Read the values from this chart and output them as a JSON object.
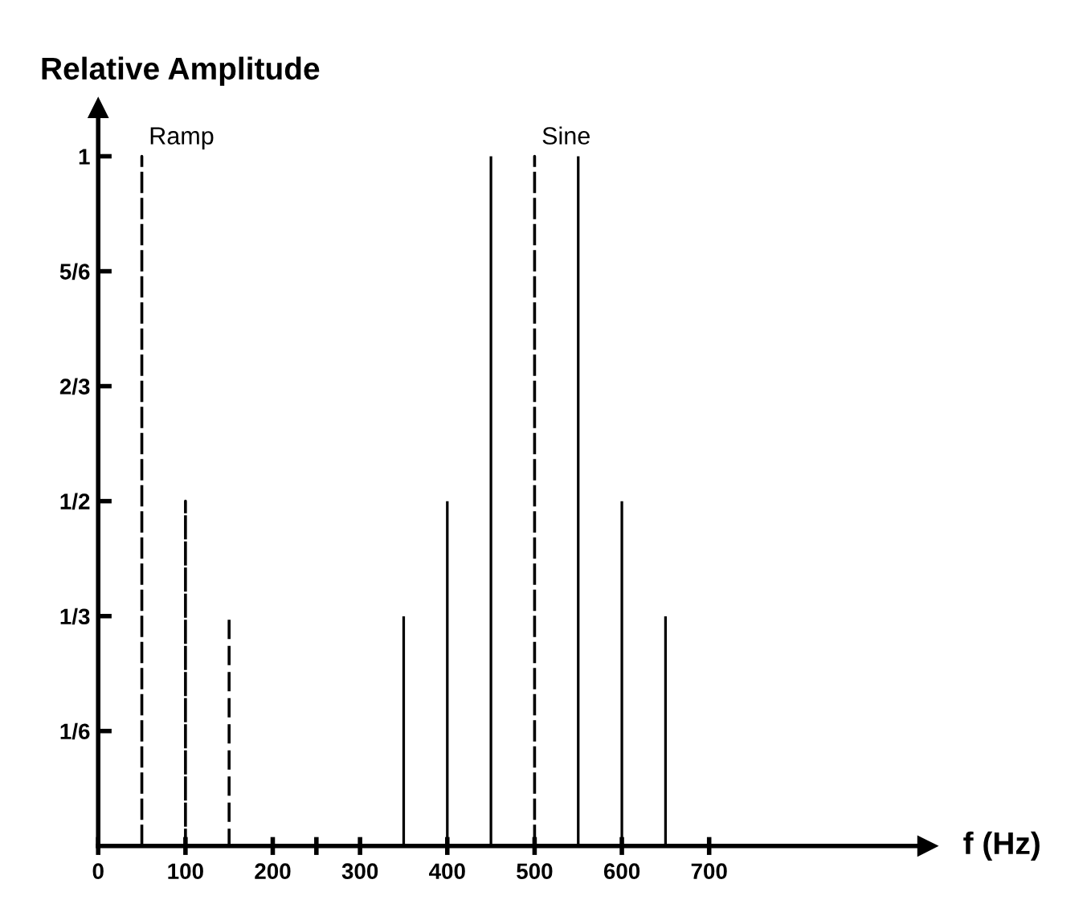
{
  "chart_data": {
    "type": "bar",
    "xlabel": "f (Hz)",
    "ylabel": "Relative Amplitude",
    "marker": "none",
    "series": [
      {
        "name": "Ramp",
        "color": "#000000",
        "line_style": "dashed",
        "x": [
          50,
          100,
          150
        ],
        "values": [
          1,
          0.5,
          0.333
        ]
      },
      {
        "name": "Sine",
        "color": "#000000",
        "line_style": "dashed",
        "x": [
          500
        ],
        "values": [
          1
        ]
      },
      {
        "color": "#000000",
        "line_style": "solid",
        "x": [
          350,
          400,
          450,
          550,
          600,
          650
        ],
        "values": [
          0.333,
          0.5,
          1,
          1,
          0.5,
          0.333
        ]
      }
    ],
    "xlim": [
      0,
      950
    ],
    "ylim": [
      0,
      1.07
    ],
    "xticks": [
      0,
      100,
      200,
      {
        "value": 250,
        "label": null
      },
      300,
      400,
      500,
      600,
      700
    ],
    "yticks": [
      {
        "value": 0.1667,
        "label": "1/6"
      },
      {
        "value": 0.3333,
        "label": "1/3"
      },
      {
        "value": 0.5,
        "label": "1/2"
      },
      {
        "value": 0.6667,
        "label": "2/3"
      },
      {
        "value": 0.8333,
        "label": "5/6"
      },
      1
    ],
    "grid": false,
    "legend": false
  }
}
